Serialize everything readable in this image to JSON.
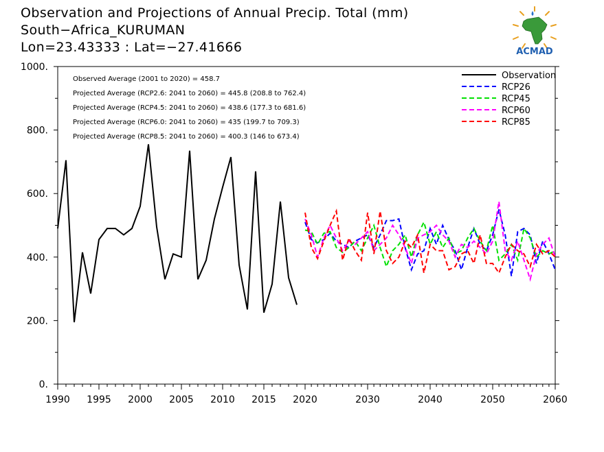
{
  "header": {
    "title_line1": "Observation and Projections of Annual Precip. Total (mm)",
    "title_line2": "South−Africa_KURUMAN",
    "title_line3": "Lon=23.43333 : Lat=−27.41666"
  },
  "logo": {
    "text": "ACMAD",
    "icon": "acmad-africa-logo"
  },
  "chart_data": {
    "type": "line",
    "ylim": [
      0,
      1000
    ],
    "yticks": [
      0,
      200,
      400,
      600,
      800,
      1000
    ],
    "ytick_labels": [
      "0.",
      "200.",
      "400.",
      "600.",
      "800.",
      "1000."
    ],
    "xticks_left": [
      1990,
      1995,
      2000,
      2005,
      2010,
      2015,
      2020
    ],
    "xticks_right": [
      2030,
      2040,
      2050,
      2060
    ],
    "annotations": [
      "Observed Average (2001 to 2020) = 458.7",
      "Projected Average (RCP2.6: 2041 to 2060) = 445.8 (208.8 to 762.4)",
      "Projected Average (RCP4.5: 2041 to 2060) = 438.6 (177.3 to 681.6)",
      "Projected Average (RCP6.0: 2041 to 2060) = 435 (199.7 to 709.3)",
      "Projected Average (RCP8.5: 2041 to 2060) = 400.3 (146 to 673.4)"
    ],
    "legend_position": "top-right",
    "observation": {
      "name": "Observation",
      "color": "#000000",
      "x": [
        1990,
        1991,
        1992,
        1993,
        1994,
        1995,
        1996,
        1997,
        1998,
        1999,
        2000,
        2001,
        2002,
        2003,
        2004,
        2005,
        2006,
        2007,
        2008,
        2009,
        2010,
        2011,
        2012,
        2013,
        2014,
        2015,
        2016,
        2017,
        2018,
        2019,
        2020
      ],
      "y": [
        490,
        705,
        195,
        415,
        285,
        455,
        490,
        490,
        470,
        490,
        560,
        755,
        495,
        330,
        410,
        400,
        735,
        330,
        390,
        520,
        620,
        715,
        375,
        235,
        670,
        225,
        315,
        575,
        335,
        250,
        null
      ]
    },
    "projections": {
      "x_start": 2020,
      "x_end": 2060,
      "series": [
        {
          "name": "RCP26",
          "color": "#0000ff",
          "y": [
            510,
            455,
            445,
            455,
            475,
            450,
            440,
            430,
            450,
            460,
            470,
            430,
            470,
            515,
            515,
            520,
            430,
            360,
            410,
            420,
            490,
            440,
            500,
            455,
            420,
            360,
            430,
            490,
            440,
            420,
            470,
            550,
            470,
            340,
            480,
            490,
            470,
            380,
            450,
            410,
            360
          ]
        },
        {
          "name": "RCP45",
          "color": "#00e000",
          "y": [
            485,
            480,
            440,
            475,
            480,
            430,
            415,
            430,
            450,
            420,
            460,
            500,
            430,
            370,
            420,
            440,
            470,
            400,
            470,
            510,
            440,
            480,
            430,
            460,
            410,
            420,
            460,
            490,
            450,
            420,
            500,
            390,
            410,
            440,
            390,
            490,
            460,
            400,
            420,
            410,
            420
          ]
        },
        {
          "name": "RCP60",
          "color": "#ff00ff",
          "y": [
            520,
            470,
            400,
            460,
            500,
            460,
            420,
            450,
            440,
            460,
            480,
            420,
            440,
            460,
            500,
            470,
            430,
            380,
            460,
            470,
            480,
            500,
            470,
            450,
            400,
            440,
            430,
            450,
            430,
            410,
            450,
            575,
            420,
            390,
            450,
            390,
            330,
            410,
            440,
            460,
            400
          ]
        },
        {
          "name": "RCP85",
          "color": "#ff0000",
          "y": [
            540,
            430,
            395,
            450,
            500,
            545,
            390,
            460,
            420,
            390,
            540,
            410,
            545,
            420,
            380,
            400,
            450,
            430,
            470,
            350,
            440,
            420,
            420,
            360,
            370,
            410,
            420,
            380,
            470,
            380,
            380,
            350,
            400,
            440,
            420,
            410,
            370,
            440,
            410,
            420,
            400
          ]
        }
      ]
    }
  }
}
